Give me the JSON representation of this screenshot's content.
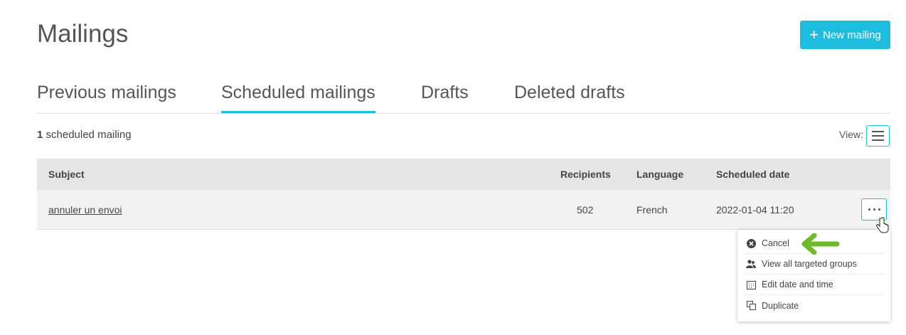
{
  "page": {
    "title": "Mailings",
    "new_button": "New mailing"
  },
  "tabs": [
    {
      "label": "Previous mailings"
    },
    {
      "label": "Scheduled mailings",
      "active": true
    },
    {
      "label": "Drafts"
    },
    {
      "label": "Deleted drafts"
    }
  ],
  "summary": {
    "count": "1",
    "text": "scheduled mailing",
    "view_label": "View:"
  },
  "table": {
    "headers": {
      "subject": "Subject",
      "recipients": "Recipients",
      "language": "Language",
      "scheduled": "Scheduled date"
    },
    "rows": [
      {
        "subject": "annuler un envoi",
        "recipients": "502",
        "language": "French",
        "scheduled": "2022-01-04 11:20"
      }
    ]
  },
  "menu": {
    "items": [
      {
        "label": "Cancel",
        "icon": "cancel-icon"
      },
      {
        "label": "View all targeted groups",
        "icon": "users-icon"
      },
      {
        "label": "Edit date and time",
        "icon": "calendar-icon"
      },
      {
        "label": "Duplicate",
        "icon": "duplicate-icon"
      }
    ]
  },
  "colors": {
    "accent": "#1ebde0",
    "arrow": "#6dbb2b"
  }
}
